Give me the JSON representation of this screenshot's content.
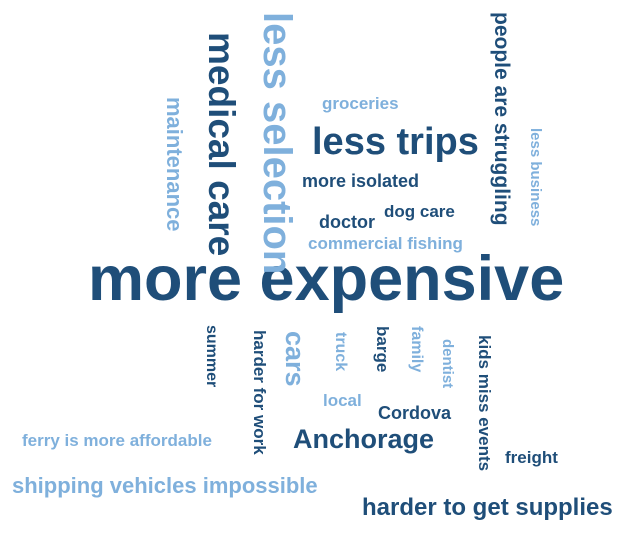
{
  "word_cloud": {
    "colors": {
      "dark": "#1f4e79",
      "mid": "#2e6aa6",
      "light": "#7fb0dc"
    },
    "words": [
      {
        "text": "more expensive"
      },
      {
        "text": "less selection"
      },
      {
        "text": "medical care"
      },
      {
        "text": "maintenance"
      },
      {
        "text": "people are struggling"
      },
      {
        "text": "less business"
      },
      {
        "text": "groceries"
      },
      {
        "text": "less trips"
      },
      {
        "text": "more isolated"
      },
      {
        "text": "doctor"
      },
      {
        "text": "dog care"
      },
      {
        "text": "commercial fishing"
      },
      {
        "text": "summer"
      },
      {
        "text": "harder for work"
      },
      {
        "text": "cars"
      },
      {
        "text": "truck"
      },
      {
        "text": "barge"
      },
      {
        "text": "family"
      },
      {
        "text": "dentist"
      },
      {
        "text": "kids miss events"
      },
      {
        "text": "local"
      },
      {
        "text": "Cordova"
      },
      {
        "text": "ferry is more affordable"
      },
      {
        "text": "Anchorage"
      },
      {
        "text": "freight"
      },
      {
        "text": "shipping vehicles impossible"
      },
      {
        "text": "harder to get supplies"
      }
    ]
  }
}
